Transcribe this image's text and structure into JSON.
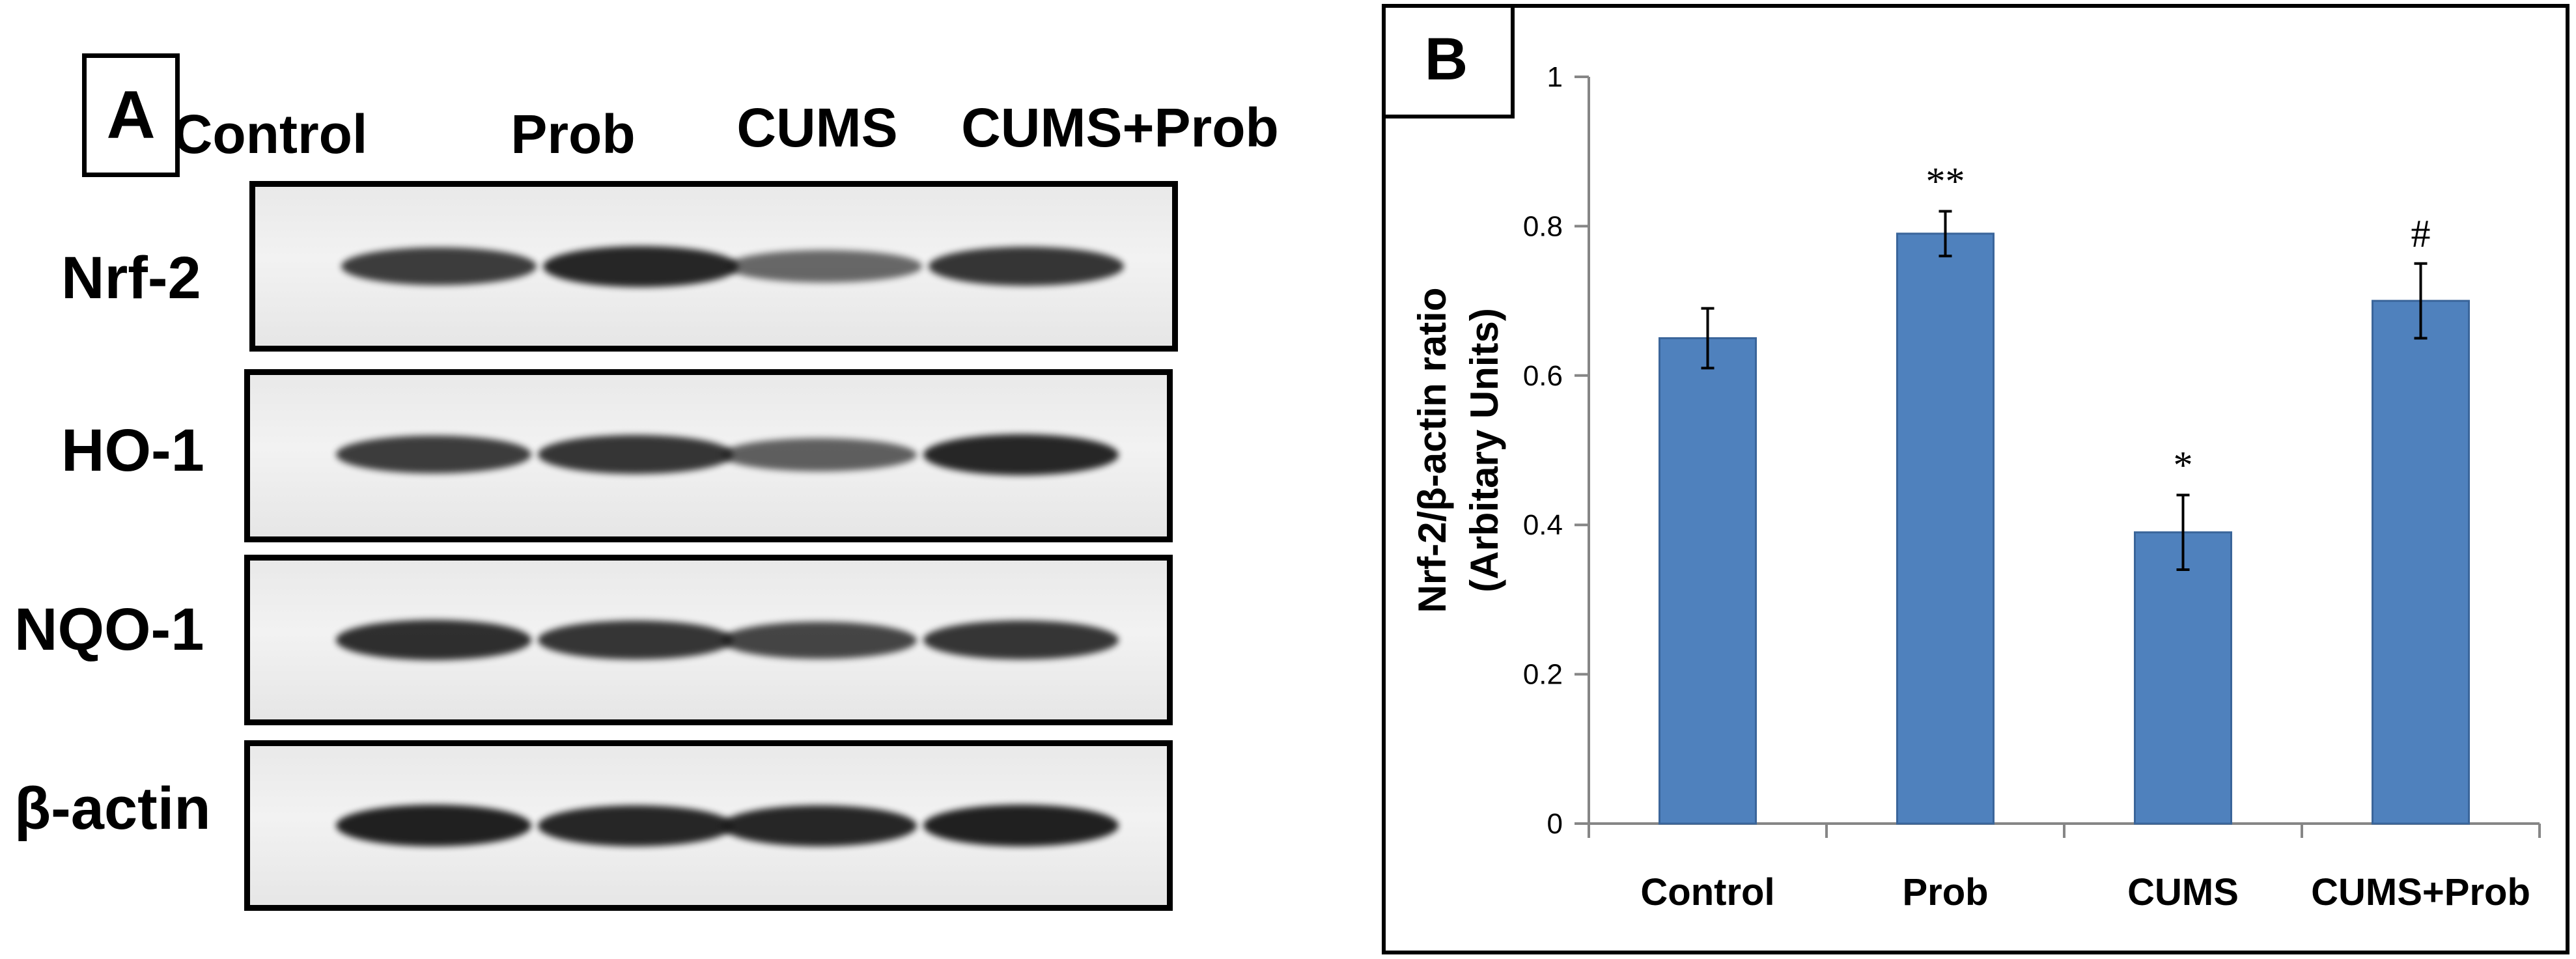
{
  "panel_a": {
    "label": "A",
    "lanes": [
      "Control",
      "Prob",
      "CUMS",
      "CUMS+Prob"
    ],
    "rows": [
      {
        "label": "Nrf-2",
        "intensity": [
          0.75,
          0.9,
          0.45,
          0.8
        ]
      },
      {
        "label": "HO-1",
        "intensity": [
          0.75,
          0.8,
          0.5,
          0.9
        ]
      },
      {
        "label": "NQO-1",
        "intensity": [
          0.85,
          0.8,
          0.7,
          0.8
        ]
      },
      {
        "label": "β-actin",
        "intensity": [
          0.95,
          0.9,
          0.9,
          0.95
        ]
      }
    ],
    "band_color": "#1a1a1a"
  },
  "panel_b": {
    "label": "B"
  },
  "chart_data": {
    "type": "bar",
    "categories": [
      "Control",
      "Prob",
      "CUMS",
      "CUMS+Prob"
    ],
    "values": [
      0.65,
      0.79,
      0.39,
      0.7
    ],
    "errors": [
      0.04,
      0.03,
      0.05,
      0.05
    ],
    "annotations": [
      "",
      "**",
      "*",
      "#"
    ],
    "ylabel": "Nrf-2/β-actin ratio",
    "ylabel2": "(Arbitary Units)",
    "ylim": [
      0,
      1
    ],
    "yticks": [
      "0",
      "0.2",
      "0.4",
      "0.6",
      "0.8",
      "1"
    ],
    "yticks_values": [
      0,
      0.2,
      0.4,
      0.6,
      0.8,
      1
    ],
    "bar_color": "#4f81bd",
    "grid": false,
    "legend": "none"
  }
}
